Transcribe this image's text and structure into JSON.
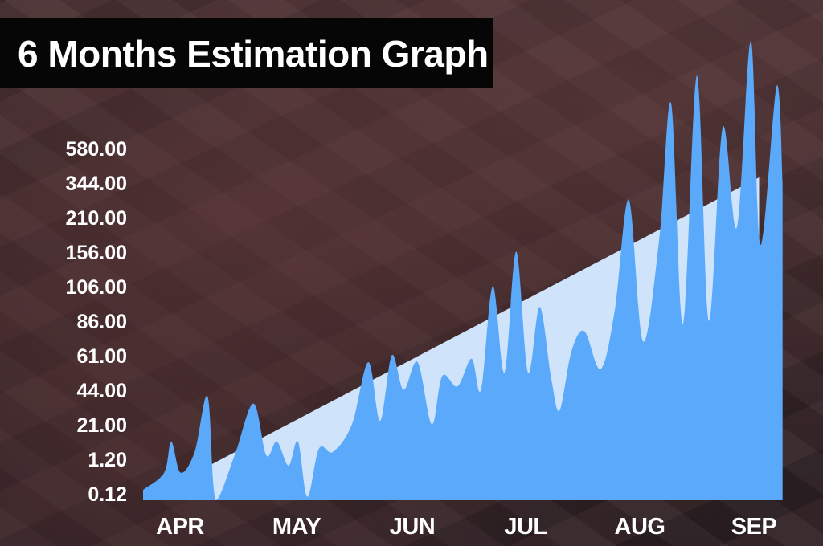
{
  "title": "6 Months Estimation Graph",
  "colors": {
    "background": "#3b2a2c",
    "title_bg": "#060606",
    "title_text": "#ffffff",
    "trend_fill": "#cfe3fb",
    "series_fill": "#5aa9fb",
    "tick_text": "#ffffff"
  },
  "chart_data": {
    "type": "area",
    "title": "6 Months Estimation Graph",
    "xlabel": "",
    "ylabel": "",
    "y_scale": "categorical (non-linear tick labels)",
    "y_ticks": [
      "580.00",
      "344.00",
      "210.00",
      "156.00",
      "106.00",
      "86.00",
      "61.00",
      "44.00",
      "21.00",
      "1.20",
      "0.12"
    ],
    "x_ticks": [
      "APR",
      "MAY",
      "JUN",
      "JUL",
      "AUG",
      "SEP"
    ],
    "grid": false,
    "legend": "none",
    "trend": {
      "start": {
        "month": 0.0,
        "tick_level": 0.0
      },
      "end": {
        "month": 5.25,
        "tick_level": 9.35
      }
    },
    "series": [
      {
        "points": [
          [
            0.0,
            0.3
          ],
          [
            0.18,
            0.8
          ],
          [
            0.24,
            1.7
          ],
          [
            0.32,
            0.8
          ],
          [
            0.44,
            1.4
          ],
          [
            0.55,
            3.0
          ],
          [
            0.62,
            0.0
          ],
          [
            0.78,
            1.3
          ],
          [
            0.94,
            2.8
          ],
          [
            1.05,
            1.3
          ],
          [
            1.14,
            1.7
          ],
          [
            1.24,
            1.0
          ],
          [
            1.32,
            1.7
          ],
          [
            1.4,
            0.1
          ],
          [
            1.5,
            1.5
          ],
          [
            1.62,
            1.4
          ],
          [
            1.78,
            2.2
          ],
          [
            1.92,
            4.0
          ],
          [
            2.02,
            2.3
          ],
          [
            2.12,
            4.2
          ],
          [
            2.22,
            3.2
          ],
          [
            2.34,
            4.0
          ],
          [
            2.46,
            2.2
          ],
          [
            2.55,
            3.6
          ],
          [
            2.68,
            3.3
          ],
          [
            2.8,
            4.1
          ],
          [
            2.88,
            3.2
          ],
          [
            2.98,
            6.2
          ],
          [
            3.08,
            3.7
          ],
          [
            3.18,
            7.2
          ],
          [
            3.28,
            3.7
          ],
          [
            3.38,
            5.6
          ],
          [
            3.48,
            3.5
          ],
          [
            3.55,
            2.6
          ],
          [
            3.65,
            4.3
          ],
          [
            3.76,
            4.9
          ],
          [
            3.9,
            3.8
          ],
          [
            4.02,
            5.5
          ],
          [
            4.14,
            8.7
          ],
          [
            4.26,
            4.6
          ],
          [
            4.4,
            7.6
          ],
          [
            4.5,
            11.5
          ],
          [
            4.6,
            5.1
          ],
          [
            4.72,
            12.3
          ],
          [
            4.82,
            5.2
          ],
          [
            4.94,
            10.8
          ],
          [
            5.06,
            7.9
          ],
          [
            5.18,
            13.3
          ],
          [
            5.26,
            7.4
          ],
          [
            5.4,
            12.0
          ],
          [
            5.45,
            9.2
          ]
        ]
      }
    ]
  }
}
